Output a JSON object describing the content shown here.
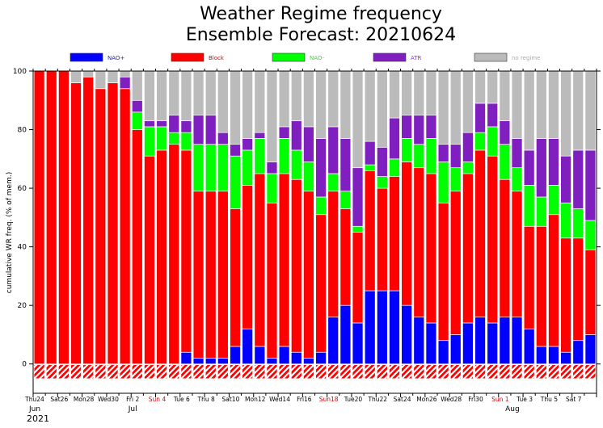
{
  "chart_data": {
    "type": "bar",
    "stacked": true,
    "title": "Weather Regime frequency",
    "subtitle": "Ensemble Forecast: 20210624",
    "ylabel": "cumulative WR freq. (% of mem.)",
    "ylim": [
      -10,
      100
    ],
    "yticks": [
      0,
      20,
      40,
      60,
      80,
      100
    ],
    "colors": {
      "NAO+": "#0000ff",
      "Block": "#ff0000",
      "NAO-": "#00ff00",
      "ATR": "#7f1fbf",
      "no regime": "#bbbbbb",
      "label_blue": "#2222dd",
      "label_red": "#dd0000",
      "label_green": "#33dd33",
      "label_purple": "#9933cc",
      "label_gray": "#aaaaaa",
      "weekend_tick": "#dd0000"
    },
    "legend": [
      {
        "name": "NAO+",
        "color_key": "NAO+",
        "label_color_key": "label_blue"
      },
      {
        "name": "Block",
        "color_key": "Block",
        "label_color_key": "label_red"
      },
      {
        "name": "NAO-",
        "color_key": "NAO-",
        "label_color_key": "label_green"
      },
      {
        "name": "ATR",
        "color_key": "ATR",
        "label_color_key": "label_purple"
      },
      {
        "name": "no regime",
        "color_key": "no regime",
        "label_color_key": "label_gray"
      }
    ],
    "legend_position": "top",
    "series": [
      {
        "name": "NAO+",
        "values": [
          0,
          0,
          0,
          0,
          0,
          0,
          0,
          0,
          0,
          0,
          0,
          0,
          4,
          2,
          2,
          2,
          6,
          12,
          6,
          2,
          6,
          4,
          2,
          4,
          16,
          20,
          14,
          25,
          25,
          25,
          20,
          16,
          14,
          8,
          10,
          14,
          16,
          14,
          16,
          16,
          12,
          6,
          6,
          4,
          8,
          10
        ]
      },
      {
        "name": "Block",
        "values": [
          100,
          100,
          100,
          96,
          98,
          94,
          96,
          94,
          80,
          71,
          73,
          75,
          69,
          57,
          57,
          57,
          47,
          49,
          59,
          53,
          59,
          59,
          57,
          47,
          43,
          33,
          31,
          41,
          35,
          39,
          49,
          51,
          51,
          47,
          49,
          51,
          57,
          57,
          47,
          43,
          35,
          41,
          45,
          39,
          35,
          29
        ]
      },
      {
        "name": "NAO-",
        "values": [
          0,
          0,
          0,
          0,
          0,
          0,
          0,
          0,
          6,
          10,
          8,
          4,
          6,
          16,
          16,
          16,
          18,
          12,
          12,
          10,
          12,
          10,
          10,
          6,
          6,
          6,
          2,
          2,
          4,
          6,
          8,
          8,
          12,
          14,
          8,
          4,
          6,
          10,
          12,
          8,
          14,
          10,
          10,
          12,
          10,
          10
        ]
      },
      {
        "name": "ATR",
        "values": [
          0,
          0,
          0,
          0,
          0,
          0,
          0,
          4,
          4,
          2,
          2,
          6,
          4,
          10,
          10,
          4,
          4,
          4,
          2,
          4,
          4,
          10,
          12,
          20,
          16,
          18,
          20,
          8,
          10,
          14,
          8,
          10,
          8,
          6,
          8,
          10,
          10,
          8,
          8,
          10,
          12,
          20,
          16,
          16,
          20,
          24
        ]
      },
      {
        "name": "no regime",
        "values": [
          0,
          0,
          0,
          4,
          2,
          6,
          4,
          2,
          10,
          17,
          17,
          15,
          17,
          15,
          15,
          21,
          25,
          23,
          21,
          31,
          19,
          17,
          19,
          23,
          19,
          23,
          33,
          24,
          26,
          16,
          15,
          15,
          15,
          25,
          25,
          21,
          11,
          11,
          17,
          23,
          27,
          23,
          23,
          29,
          27,
          27
        ]
      }
    ],
    "xticks": [
      {
        "label": "Thu24",
        "index": 0,
        "weekend": false
      },
      {
        "label": "Sat26",
        "index": 2,
        "weekend": false
      },
      {
        "label": "Mon28",
        "index": 4,
        "weekend": false
      },
      {
        "label": "Wed30",
        "index": 6,
        "weekend": false
      },
      {
        "label": "Fri 2",
        "index": 8,
        "weekend": false
      },
      {
        "label": "Sun 4",
        "index": 10,
        "weekend": true
      },
      {
        "label": "Tue 6",
        "index": 12,
        "weekend": false
      },
      {
        "label": "Thu 8",
        "index": 14,
        "weekend": false
      },
      {
        "label": "Sat10",
        "index": 16,
        "weekend": false
      },
      {
        "label": "Mon12",
        "index": 18,
        "weekend": false
      },
      {
        "label": "Wed14",
        "index": 20,
        "weekend": false
      },
      {
        "label": "Fri16",
        "index": 22,
        "weekend": false
      },
      {
        "label": "Sun18",
        "index": 24,
        "weekend": true
      },
      {
        "label": "Tue20",
        "index": 26,
        "weekend": false
      },
      {
        "label": "Thu22",
        "index": 28,
        "weekend": false
      },
      {
        "label": "Sat24",
        "index": 30,
        "weekend": false
      },
      {
        "label": "Mon26",
        "index": 32,
        "weekend": false
      },
      {
        "label": "Wed28",
        "index": 34,
        "weekend": false
      },
      {
        "label": "Fri30",
        "index": 36,
        "weekend": false
      },
      {
        "label": "Sun 1",
        "index": 38,
        "weekend": true
      },
      {
        "label": "Tue 3",
        "index": 40,
        "weekend": false
      },
      {
        "label": "Thu 5",
        "index": 42,
        "weekend": false
      },
      {
        "label": "Sat 7",
        "index": 44,
        "weekend": false
      }
    ],
    "month_labels": [
      {
        "label": "Jun",
        "index": 0
      },
      {
        "label": "Jul",
        "index": 8
      },
      {
        "label": "Aug",
        "index": 39
      }
    ],
    "year_label": "2021",
    "grid": false
  }
}
